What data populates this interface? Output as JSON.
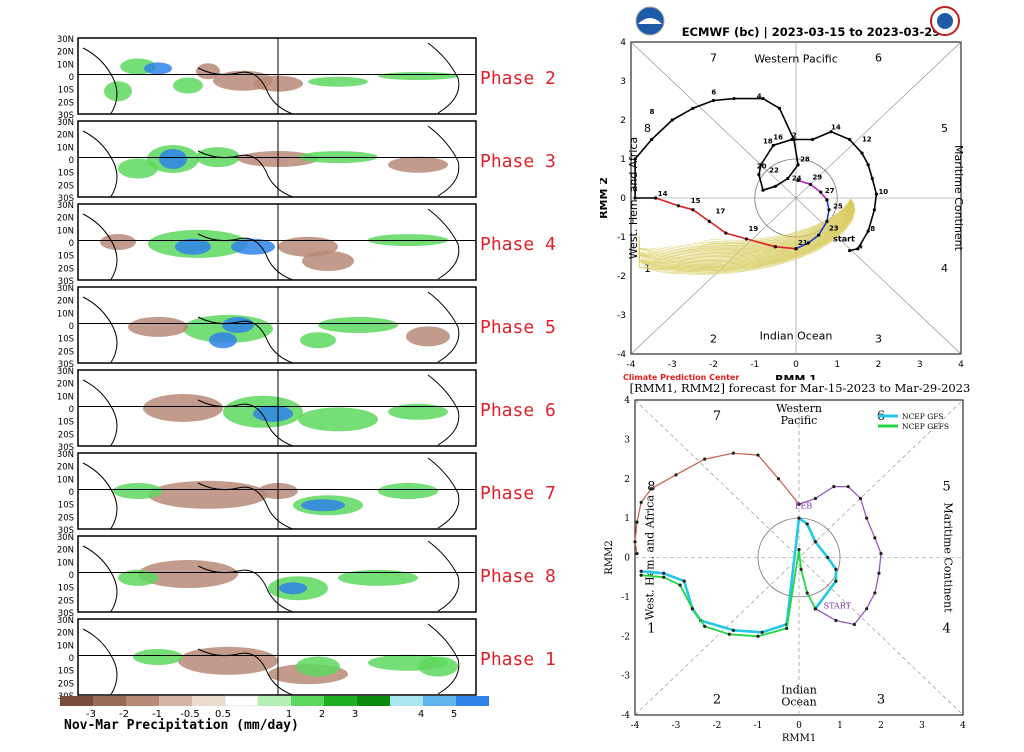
{
  "phase_maps": {
    "panels": [
      {
        "label": "Phase 2"
      },
      {
        "label": "Phase 3"
      },
      {
        "label": "Phase 4"
      },
      {
        "label": "Phase 5"
      },
      {
        "label": "Phase 6"
      },
      {
        "label": "Phase 7"
      },
      {
        "label": "Phase 8"
      },
      {
        "label": "Phase 1"
      }
    ],
    "lat_labels": [
      "30N",
      "20N",
      "10N",
      "0",
      "10S",
      "20S",
      "30S"
    ],
    "colorbar": {
      "title": "Nov-Mar Precipitation (mm/day)",
      "tick_labels": [
        "-3",
        "-2",
        "-1",
        "-0.5",
        "0.5",
        "1",
        "2",
        "3",
        "4",
        "5"
      ],
      "colors": [
        "#7a4a3a",
        "#9a6a58",
        "#b88a78",
        "#d5b3a5",
        "#ecd9d0",
        "#ffffff",
        "#b4f0b4",
        "#5ed85e",
        "#1fae1f",
        "#0a8a0a",
        "#a8e6f0",
        "#5fb4ee",
        "#2f82e8"
      ]
    },
    "colors": {
      "label_red": "#e0202a"
    }
  },
  "ecmwf_chart": {
    "title": "ECMWF (bc) | 2023-03-15 to 2023-03-29",
    "xlabel": "RMM 1",
    "ylabel": "RMM 2",
    "tick_labels": [
      "-4",
      "-3",
      "-2",
      "-1",
      "0",
      "1",
      "2",
      "3",
      "4"
    ],
    "phase_numbers": [
      "1",
      "2",
      "3",
      "4",
      "5",
      "6",
      "7",
      "8"
    ],
    "region_labels": {
      "top": "Western Pacific",
      "bottom": "Indian Ocean",
      "left": "West. Hem. and Africa",
      "right": "Maritime Continent"
    },
    "credit": "Climate Prediction Center",
    "start_label": "start",
    "logo_left": "noaa-logo-icon",
    "logo_right": "nws-logo-icon",
    "colors": {
      "observed": "#000000",
      "forecast_magenta": "#c020c0",
      "forecast_blue": "#1a3ad8",
      "forecast_red": "#e02020",
      "ensemble": "#d8cc60",
      "credit": "#e02020"
    }
  },
  "ncep_chart": {
    "title": "[RMM1, RMM2] forecast for Mar-15-2023 to Mar-29-2023",
    "xlabel": "RMM1",
    "ylabel": "RMM2",
    "tick_labels": [
      "-4",
      "-3",
      "-2",
      "-1",
      "0",
      "1",
      "2",
      "3",
      "4"
    ],
    "phase_numbers": [
      "1",
      "2",
      "3",
      "4",
      "5",
      "6",
      "7",
      "8"
    ],
    "region_labels": {
      "top": "Western Pacific",
      "bottom": "Indian Ocean",
      "left": "West. Hem. and Africa",
      "right": "Maritime Continent"
    },
    "legend": [
      {
        "label": "NCEP GFS",
        "color": "#22c8e8"
      },
      {
        "label": "NCEP GEFS",
        "color": "#22d840"
      }
    ],
    "month_labels": [
      "FEB"
    ],
    "start_label": "START",
    "colors": {
      "january": "#c0604a",
      "february": "#9050b8",
      "gfs": "#22c8e8",
      "gefs": "#22d840",
      "labels_purple": "#8030b0"
    }
  },
  "chart_data": [
    {
      "type": "line",
      "title": "ECMWF (bc) | 2023-03-15 to 2023-03-29",
      "xlabel": "RMM 1",
      "ylabel": "RMM 2",
      "xlim": [
        -4,
        4
      ],
      "ylim": [
        -4,
        4
      ],
      "grid": "phase diagonals and unit circle",
      "series": [
        {
          "name": "observed",
          "points": [
            [
              1.3,
              -1.35
            ],
            [
              1.5,
              -1.3
            ],
            [
              1.75,
              -0.85
            ],
            [
              1.9,
              -0.3
            ],
            [
              1.95,
              0.1
            ],
            [
              1.85,
              0.5
            ],
            [
              1.75,
              0.85
            ],
            [
              1.6,
              1.15
            ],
            [
              1.3,
              1.5
            ],
            [
              0.85,
              1.7
            ],
            [
              0.4,
              1.5
            ],
            [
              -0.1,
              1.5
            ],
            [
              -0.55,
              1.35
            ],
            [
              -0.85,
              0.85
            ],
            [
              -0.9,
              0.6
            ],
            [
              -0.8,
              0.2
            ],
            [
              -0.5,
              0.3
            ],
            [
              -0.2,
              0.5
            ],
            [
              0.05,
              0.85
            ],
            [
              -0.05,
              1.5
            ],
            [
              -0.4,
              2.3
            ],
            [
              -0.8,
              2.55
            ],
            [
              -1.5,
              2.55
            ],
            [
              -2.0,
              2.5
            ],
            [
              -2.5,
              2.3
            ],
            [
              -3.0,
              2.0
            ],
            [
              -3.5,
              1.5
            ],
            [
              -3.9,
              1.0
            ],
            [
              -3.9,
              0.0
            ],
            [
              -3.4,
              0.0
            ]
          ]
        },
        {
          "name": "forecast-magenta",
          "points": [
            [
              0.05,
              0.45
            ],
            [
              0.35,
              0.35
            ],
            [
              0.6,
              0.15
            ],
            [
              0.75,
              -0.05
            ]
          ]
        },
        {
          "name": "forecast-blue",
          "points": [
            [
              0.75,
              -0.05
            ],
            [
              0.8,
              -0.3
            ],
            [
              0.75,
              -0.6
            ],
            [
              0.55,
              -0.95
            ],
            [
              0.3,
              -1.15
            ],
            [
              0.0,
              -1.3
            ]
          ]
        },
        {
          "name": "forecast-red",
          "points": [
            [
              0.0,
              -1.3
            ],
            [
              -0.5,
              -1.25
            ],
            [
              -1.2,
              -1.05
            ],
            [
              -1.7,
              -0.9
            ],
            [
              -2.1,
              -0.6
            ],
            [
              -2.5,
              -0.3
            ],
            [
              -2.85,
              -0.2
            ],
            [
              -3.4,
              0.0
            ]
          ]
        }
      ],
      "point_labels": [
        {
          "text": "14",
          "x": -3.4,
          "y": 0.0
        },
        {
          "text": "15",
          "x": -2.6,
          "y": -0.18
        },
        {
          "text": "17",
          "x": -2.0,
          "y": -0.45
        },
        {
          "text": "19",
          "x": -1.2,
          "y": -0.9
        },
        {
          "text": "21",
          "x": 0.0,
          "y": -1.25
        },
        {
          "text": "23",
          "x": 0.75,
          "y": -0.88
        },
        {
          "text": "25",
          "x": 0.85,
          "y": -0.32
        },
        {
          "text": "27",
          "x": 0.65,
          "y": 0.08
        },
        {
          "text": "29",
          "x": 0.35,
          "y": 0.42
        },
        {
          "text": "24",
          "x": -0.15,
          "y": 0.4
        },
        {
          "text": "28",
          "x": 0.05,
          "y": 0.88
        },
        {
          "text": "22",
          "x": -0.7,
          "y": 0.6
        },
        {
          "text": "20",
          "x": -1.0,
          "y": 0.7
        },
        {
          "text": "18",
          "x": -0.85,
          "y": 1.35
        },
        {
          "text": "16",
          "x": -0.6,
          "y": 1.45
        },
        {
          "text": "2",
          "x": -0.15,
          "y": 1.5
        },
        {
          "text": "14",
          "x": 0.8,
          "y": 1.7
        },
        {
          "text": "12",
          "x": 1.55,
          "y": 1.4
        },
        {
          "text": "10",
          "x": 1.95,
          "y": 0.05
        },
        {
          "text": "8",
          "x": 1.75,
          "y": -0.9
        },
        {
          "text": "4",
          "x": 1.45,
          "y": -1.35
        },
        {
          "text": "8",
          "x": -3.6,
          "y": 2.1
        },
        {
          "text": "6",
          "x": -2.1,
          "y": 2.6
        },
        {
          "text": "4",
          "x": -1.0,
          "y": 2.5
        }
      ],
      "ensemble_members": 50
    },
    {
      "type": "line",
      "title": "[RMM1, RMM2] forecast for Mar-15-2023 to Mar-29-2023",
      "xlabel": "RMM1",
      "ylabel": "RMM2",
      "xlim": [
        -4,
        4
      ],
      "ylim": [
        -4,
        4
      ],
      "grid": "dashed phase diagonals and unit circle",
      "legend": "top-right",
      "series": [
        {
          "name": "january",
          "points": [
            [
              0.0,
              1.35
            ],
            [
              -0.5,
              2.0
            ],
            [
              -1.0,
              2.6
            ],
            [
              -1.6,
              2.65
            ],
            [
              -2.3,
              2.5
            ],
            [
              -3.0,
              2.1
            ],
            [
              -3.6,
              1.75
            ],
            [
              -3.85,
              1.4
            ],
            [
              -3.95,
              0.9
            ],
            [
              -4.0,
              0.4
            ],
            [
              -3.95,
              0.1
            ]
          ]
        },
        {
          "name": "february",
          "points": [
            [
              0.0,
              1.35
            ],
            [
              0.4,
              1.5
            ],
            [
              0.85,
              1.8
            ],
            [
              1.2,
              1.8
            ],
            [
              1.5,
              1.5
            ],
            [
              1.65,
              1.0
            ],
            [
              1.85,
              0.5
            ],
            [
              2.0,
              0.1
            ],
            [
              1.95,
              -0.4
            ],
            [
              1.85,
              -0.9
            ],
            [
              1.65,
              -1.3
            ],
            [
              1.35,
              -1.7
            ],
            [
              0.9,
              -1.6
            ],
            [
              0.4,
              -1.3
            ]
          ]
        },
        {
          "name": "NCEP GFS",
          "points": [
            [
              0.4,
              -1.3
            ],
            [
              0.9,
              -0.6
            ],
            [
              0.9,
              -0.3
            ],
            [
              0.7,
              0.0
            ],
            [
              0.4,
              0.4
            ],
            [
              0.2,
              0.85
            ],
            [
              0.0,
              1.0
            ],
            [
              -0.3,
              -1.7
            ],
            [
              -0.9,
              -1.9
            ],
            [
              -1.6,
              -1.85
            ],
            [
              -2.4,
              -1.6
            ],
            [
              -2.6,
              -1.3
            ],
            [
              -2.8,
              -0.6
            ],
            [
              -3.3,
              -0.4
            ],
            [
              -3.85,
              -0.35
            ]
          ]
        },
        {
          "name": "NCEP GEFS",
          "points": [
            [
              0.4,
              -1.3
            ],
            [
              0.2,
              -0.9
            ],
            [
              0.05,
              -0.3
            ],
            [
              0.0,
              0.2
            ],
            [
              -0.3,
              -1.8
            ],
            [
              -1.0,
              -2.0
            ],
            [
              -1.7,
              -1.95
            ],
            [
              -2.3,
              -1.75
            ],
            [
              -2.6,
              -1.3
            ],
            [
              -2.9,
              -0.7
            ],
            [
              -3.3,
              -0.5
            ],
            [
              -3.85,
              -0.45
            ]
          ]
        }
      ]
    }
  ]
}
